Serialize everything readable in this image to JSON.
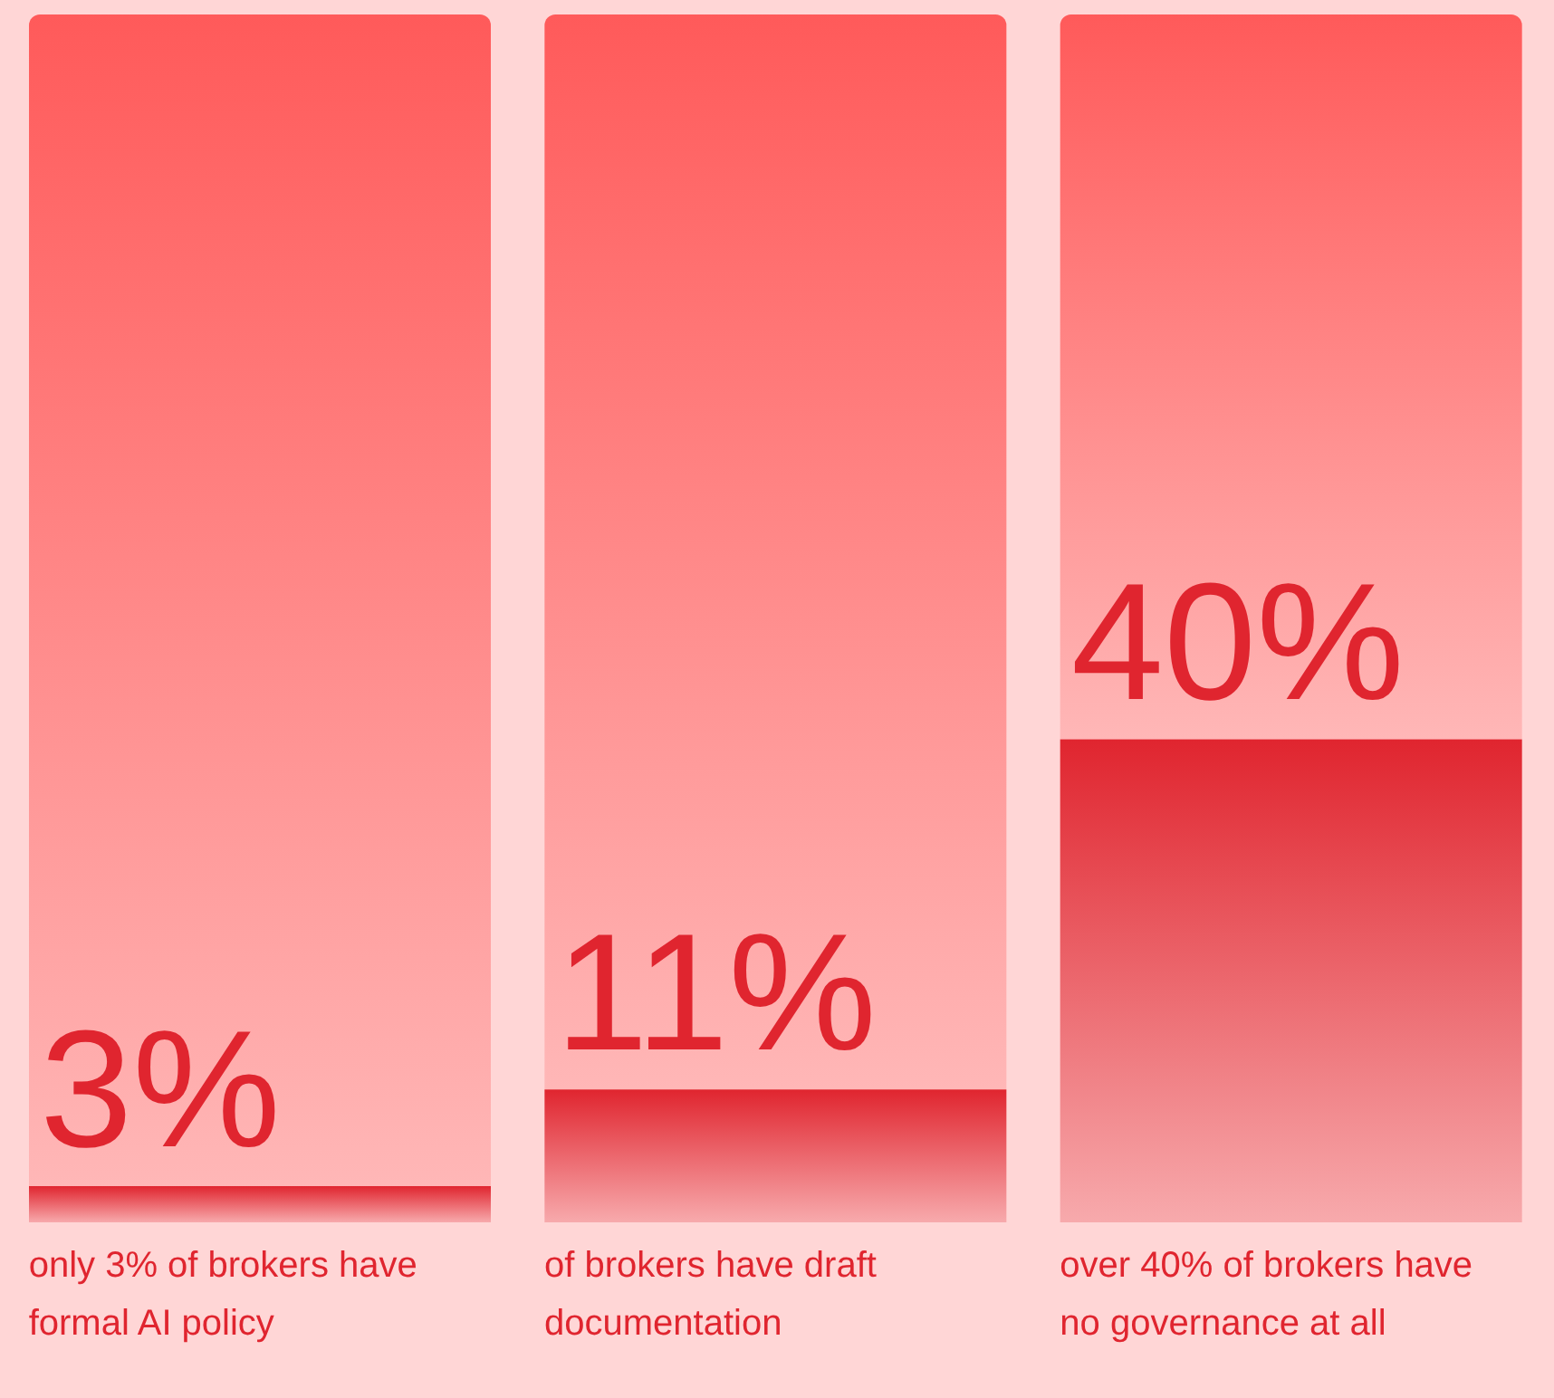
{
  "chart_data": {
    "type": "bar",
    "stacked": true,
    "categories": [
      "only 3% of brokers have formal AI policy",
      "of brokers have draft documentation",
      "over 40% of brokers have no governance at all"
    ],
    "series": [
      {
        "color": "#e0252f",
        "values": [
          3,
          11,
          40
        ],
        "value_labels": [
          "3%",
          "11%",
          "40%"
        ]
      },
      {
        "color": "#ff5a5a",
        "values": [
          97,
          89,
          60
        ]
      }
    ],
    "ylim": [
      0,
      100
    ],
    "grid": false,
    "legend": false
  }
}
